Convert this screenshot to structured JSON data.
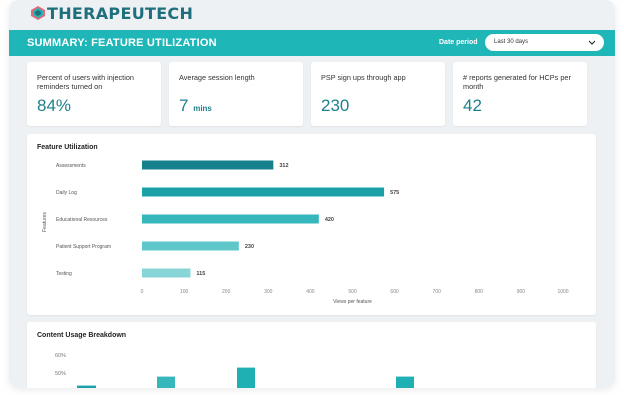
{
  "brand": {
    "name": "THERAPEUTECH",
    "icon": "brand-logo-icon"
  },
  "header": {
    "title": "SUMMARY: FEATURE UTILIZATION",
    "period_label": "Date period",
    "period_value": "Last 30 days",
    "colors": {
      "banner": "#1fb6b8",
      "brand": "#1f6f7d"
    }
  },
  "kpis": [
    {
      "label": "Percent of users with injection reminders turned on",
      "value": "84%",
      "unit": ""
    },
    {
      "label": "Average session length",
      "value": "7",
      "unit": "mins"
    },
    {
      "label": "PSP sign ups through app",
      "value": "230",
      "unit": ""
    },
    {
      "label": "# reports generated for HCPs per month",
      "value": "42",
      "unit": ""
    }
  ],
  "feature_panel": {
    "title": "Feature Utilization"
  },
  "content_panel": {
    "title": "Content Usage Breakdown"
  },
  "chart_data": [
    {
      "type": "bar",
      "orientation": "horizontal",
      "title": "Feature Utilization",
      "xlabel": "Views per feature",
      "ylabel": "Features",
      "categories": [
        "Assessments",
        "Daily Log",
        "Educational Resources",
        "Patient Support Program",
        "Testing"
      ],
      "values": [
        312,
        575,
        420,
        230,
        115
      ],
      "xlim": [
        0,
        1000
      ],
      "xticks": [
        0,
        100,
        200,
        300,
        400,
        500,
        600,
        700,
        800,
        900,
        1000
      ],
      "colors": [
        "#16808c",
        "#1aa1a8",
        "#35b7bb",
        "#5fc7ca",
        "#88d5d8"
      ],
      "grid": false
    },
    {
      "type": "bar",
      "title": "Content Usage Breakdown",
      "yticks": [
        "60%",
        "50%"
      ],
      "partially_visible": true,
      "values_percent": [
        43,
        48,
        53,
        48
      ],
      "colors": [
        "#1aa1a8",
        "#35b7bb",
        "#1fb0b3",
        "#1fb0b3"
      ]
    }
  ]
}
